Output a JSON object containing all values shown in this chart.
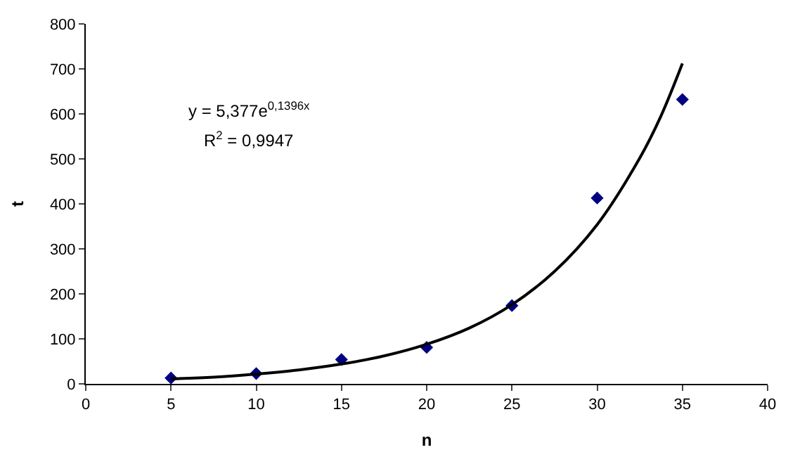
{
  "chart_data": {
    "type": "scatter",
    "xlabel": "n",
    "ylabel": "t",
    "xlim": [
      0,
      40
    ],
    "xticks": [
      0,
      5,
      10,
      15,
      20,
      25,
      30,
      35,
      40
    ],
    "ylim": [
      0,
      800
    ],
    "yticks": [
      0,
      100,
      200,
      300,
      400,
      500,
      600,
      700,
      800
    ],
    "grid": false,
    "series": [
      {
        "color": "#000080",
        "marker": "diamond",
        "x": [
          5,
          10,
          15,
          20,
          25,
          30,
          35
        ],
        "values": [
          13,
          23,
          54,
          81,
          174,
          413,
          632
        ]
      },
      {
        "type": "line",
        "color": "#000000",
        "marker": "none",
        "line_style": "solid",
        "x": [
          5,
          7.5,
          10,
          12.5,
          15,
          17.5,
          20,
          22.5,
          25,
          27.5,
          30,
          32.5,
          33.75,
          35
        ],
        "values": [
          11,
          15,
          22,
          31,
          44,
          62,
          88,
          124,
          176,
          250,
          354,
          502,
          596,
          712
        ]
      }
    ],
    "annotations": [
      "y = 5,377e$^{0,1396x}$",
      "R$^{2}$ = 0,9947"
    ]
  }
}
